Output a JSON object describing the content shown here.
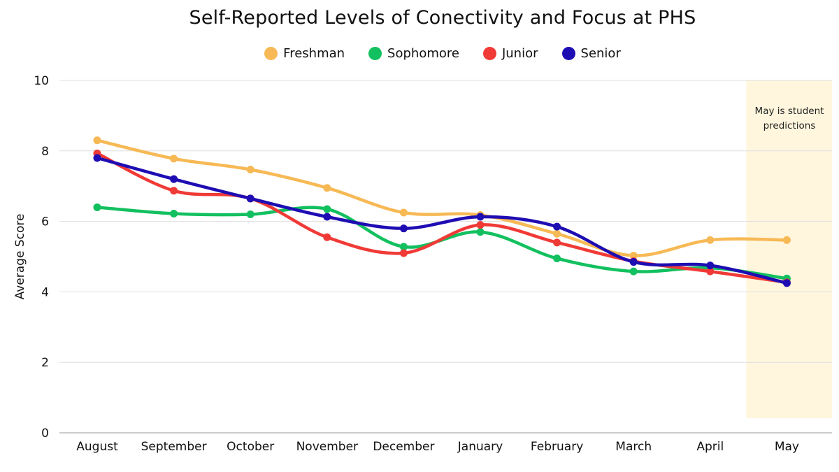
{
  "chart_data": {
    "type": "line",
    "title": "Self-Reported Levels of Conectivity and Focus at PHS",
    "xlabel": "",
    "ylabel": "Average Score",
    "ylim": [
      0,
      10
    ],
    "yticks": [
      0,
      2,
      4,
      6,
      8,
      10
    ],
    "grid": true,
    "legend_position": "top-center",
    "categories": [
      "August",
      "September",
      "October",
      "November",
      "December",
      "January",
      "February",
      "March",
      "April",
      "May"
    ],
    "series": [
      {
        "name": "Freshman",
        "color": "#F7B955",
        "values": [
          8.3,
          7.78,
          7.47,
          6.95,
          6.25,
          6.18,
          5.65,
          5.03,
          5.47,
          5.47
        ]
      },
      {
        "name": "Sophomore",
        "color": "#12C05F",
        "values": [
          6.4,
          6.22,
          6.2,
          6.35,
          5.28,
          5.7,
          4.95,
          4.58,
          4.68,
          4.38
        ]
      },
      {
        "name": "Junior",
        "color": "#F03A36",
        "values": [
          7.93,
          6.87,
          6.65,
          5.55,
          5.1,
          5.9,
          5.4,
          4.87,
          4.58,
          4.27
        ]
      },
      {
        "name": "Senior",
        "color": "#1E0DB3",
        "values": [
          7.8,
          7.2,
          6.65,
          6.13,
          5.8,
          6.13,
          5.85,
          4.85,
          4.75,
          4.25
        ]
      }
    ],
    "annotation": {
      "text_lines": [
        "May is student",
        "predictions"
      ],
      "highlight_category": "May",
      "highlight_color": "#FFF6DD"
    }
  }
}
